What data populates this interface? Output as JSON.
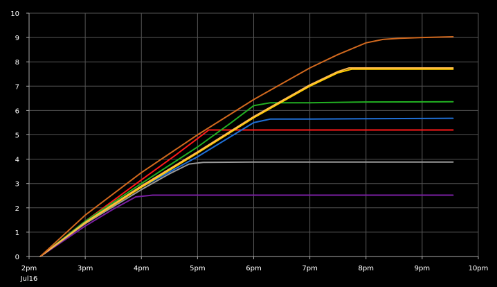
{
  "chart_data": {
    "type": "line",
    "title": "",
    "xlabel": "",
    "ylabel": "",
    "xlim": [
      2,
      10
    ],
    "ylim": [
      0,
      10
    ],
    "grid": true,
    "x_ticks": [
      2,
      3,
      4,
      5,
      6,
      7,
      8,
      9,
      10
    ],
    "x_tick_labels": [
      "2pm",
      "3pm",
      "4pm",
      "5pm",
      "6pm",
      "7pm",
      "8pm",
      "9pm",
      "10pm"
    ],
    "x_tick_sublabel": "Jul16",
    "y_ticks": [
      0,
      1,
      2,
      3,
      4,
      5,
      6,
      7,
      8,
      9,
      10
    ],
    "y_tick_labels": [
      "0",
      "1",
      "2",
      "3",
      "4",
      "5",
      "6",
      "7",
      "8",
      "9",
      "10"
    ],
    "colors": {
      "background": "#000000",
      "grid": "#555555",
      "axis": "#aaaaaa",
      "text": "#ffffff"
    },
    "series": [
      {
        "color": "#7a1fa2",
        "x": [
          2.2,
          3.0,
          3.5,
          3.9,
          4.2,
          5.0,
          6.0,
          7.0,
          8.0,
          9.55
        ],
        "y": [
          0,
          1.25,
          1.95,
          2.45,
          2.52,
          2.52,
          2.52,
          2.52,
          2.52,
          2.52
        ]
      },
      {
        "color": "#9a9a9a",
        "x": [
          2.2,
          3.0,
          4.0,
          4.5,
          4.85,
          5.1,
          6.0,
          7.0,
          8.0,
          9.55
        ],
        "y": [
          0,
          1.35,
          2.75,
          3.4,
          3.8,
          3.87,
          3.88,
          3.88,
          3.88,
          3.88
        ]
      },
      {
        "color": "#ff1a1a",
        "x": [
          2.2,
          3.0,
          4.0,
          4.6,
          5.0,
          5.2,
          6.0,
          7.0,
          8.0,
          9.55
        ],
        "y": [
          0,
          1.45,
          3.15,
          4.15,
          4.85,
          5.2,
          5.2,
          5.2,
          5.2,
          5.2
        ]
      },
      {
        "color": "#1f6fd6",
        "x": [
          2.2,
          3.0,
          4.0,
          5.0,
          5.5,
          6.0,
          6.3,
          7.0,
          8.0,
          9.55
        ],
        "y": [
          0,
          1.4,
          2.85,
          4.1,
          4.8,
          5.5,
          5.65,
          5.65,
          5.66,
          5.68
        ]
      },
      {
        "color": "#22b022",
        "x": [
          2.2,
          3.0,
          4.0,
          5.0,
          5.6,
          6.0,
          6.3,
          7.0,
          8.0,
          9.55
        ],
        "y": [
          0,
          1.45,
          3.0,
          4.5,
          5.5,
          6.2,
          6.32,
          6.32,
          6.35,
          6.36
        ]
      },
      {
        "color": "#ffd000",
        "x": [
          2.2,
          3.0,
          4.0,
          5.0,
          6.0,
          7.0,
          7.5,
          7.75,
          8.0,
          9.55
        ],
        "y": [
          0,
          1.38,
          2.85,
          4.25,
          5.7,
          7.0,
          7.55,
          7.7,
          7.7,
          7.7
        ]
      },
      {
        "color": "#ffb84d",
        "x": [
          2.2,
          3.0,
          4.0,
          5.0,
          6.0,
          7.0,
          7.5,
          7.7,
          8.0,
          9.55
        ],
        "y": [
          0,
          1.4,
          2.9,
          4.3,
          5.75,
          7.05,
          7.6,
          7.75,
          7.75,
          7.75
        ]
      },
      {
        "color": "#d2691e",
        "x": [
          2.2,
          3.0,
          4.0,
          5.0,
          6.0,
          7.0,
          7.5,
          8.0,
          8.3,
          8.6,
          9.0,
          9.55
        ],
        "y": [
          0,
          1.7,
          3.45,
          5.0,
          6.45,
          7.75,
          8.3,
          8.78,
          8.92,
          8.97,
          9.0,
          9.03
        ]
      }
    ]
  }
}
